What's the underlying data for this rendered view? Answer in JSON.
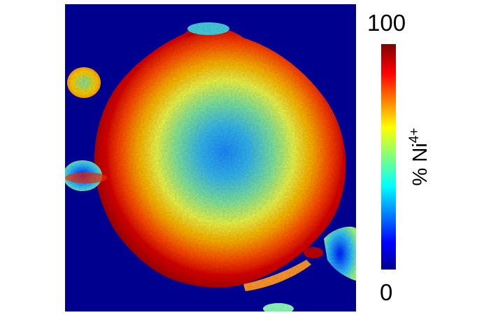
{
  "image": {
    "description_type": "false-color chemical map",
    "background_color": "#00008f"
  },
  "colorbar": {
    "max_label": "100",
    "min_label": "0",
    "title_prefix": "% Ni",
    "title_superscript": "4+",
    "colormap": [
      "#00008f",
      "#0000ff",
      "#00aaff",
      "#55ffaa",
      "#ffff00",
      "#ff7f00",
      "#ff0000",
      "#800000"
    ]
  }
}
